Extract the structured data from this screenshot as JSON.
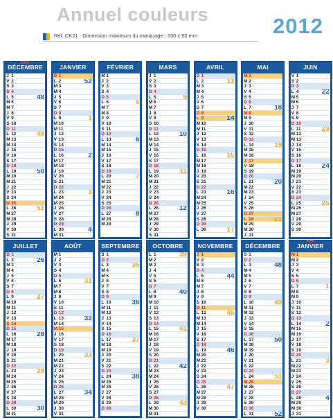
{
  "header": {
    "title": "Annuel couleurs",
    "year": "2012",
    "reference": "Réf. CK21 - Dimension maximum du marquage : 330 x 60 mm"
  },
  "colors": {
    "month_header": "#1a5ba0",
    "sunday_row": "#d6e6f4",
    "holiday_row": "#f9d07b",
    "week_number_orange": "#f2a31d",
    "week_number_blue": "#1a5ba0",
    "sunday_text": "#c8262d"
  },
  "months": [
    {
      "name": "DÉCEMBRE",
      "badge": "2011",
      "first": 4,
      "days": 31,
      "holidays": [
        25
      ]
    },
    {
      "name": "JANVIER",
      "first": 0,
      "days": 31,
      "holidays": [
        1
      ]
    },
    {
      "name": "FÉVRIER",
      "first": 3,
      "days": 29,
      "holidays": []
    },
    {
      "name": "MARS",
      "first": 4,
      "days": 31,
      "holidays": []
    },
    {
      "name": "AVRIL",
      "first": 0,
      "days": 30,
      "holidays": [
        8,
        9
      ]
    },
    {
      "name": "MAI",
      "first": 2,
      "days": 31,
      "holidays": [
        1,
        8,
        17,
        27,
        28
      ]
    },
    {
      "name": "JUIN",
      "first": 5,
      "days": 30,
      "holidays": []
    },
    {
      "name": "JUILLET",
      "first": 0,
      "days": 31,
      "holidays": [
        14
      ]
    },
    {
      "name": "AOÛT",
      "first": 3,
      "days": 31,
      "holidays": [
        15
      ]
    },
    {
      "name": "SEPTEMBRE",
      "first": 6,
      "days": 30,
      "holidays": []
    },
    {
      "name": "OCTOBRE",
      "first": 1,
      "days": 31,
      "holidays": []
    },
    {
      "name": "NOVEMBRE",
      "first": 4,
      "days": 30,
      "holidays": [
        1,
        11
      ]
    },
    {
      "name": "DÉCEMBRE",
      "first": 6,
      "days": 31,
      "holidays": [
        25
      ]
    },
    {
      "name": "JANVIER",
      "badge": "2013",
      "first": 2,
      "days": 31,
      "holidays": [
        1
      ]
    }
  ],
  "day_letters": [
    "D",
    "L",
    "M",
    "M",
    "J",
    "V",
    "S"
  ]
}
